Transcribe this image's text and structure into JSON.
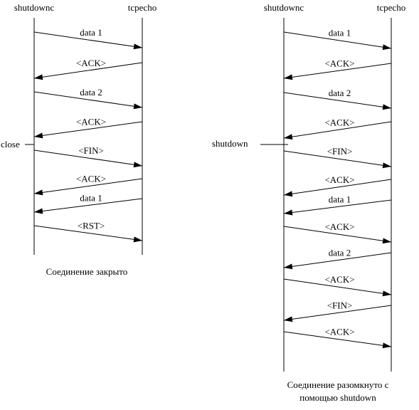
{
  "left": {
    "client_label": "shutdownc",
    "server_label": "tcpecho",
    "event_label": "close",
    "caption": "Соединение закрыто",
    "messages": [
      "data 1",
      "<ACK>",
      "data 2",
      "<ACK>",
      "<FIN>",
      "<ACK>",
      "data 1",
      "<RST>"
    ]
  },
  "right": {
    "client_label": "shutdownc",
    "server_label": "tcpecho",
    "event_label": "shutdown",
    "caption_line1": "Соединение разомкнуто с",
    "caption_line2": "помощью shutdown",
    "messages": [
      "data 1",
      "<ACK>",
      "data 2",
      "<ACK>",
      "<FIN>",
      "<ACK>",
      "data 1",
      "<ACK>",
      "data 2",
      "<ACK>",
      "<FIN>",
      "<ACK>"
    ]
  }
}
